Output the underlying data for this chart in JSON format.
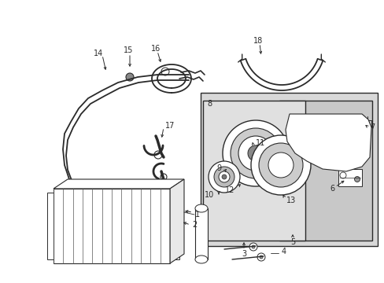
{
  "bg_color": "#ffffff",
  "line_color": "#2a2a2a",
  "shade_color": "#d8d8d8",
  "fig_width": 4.89,
  "fig_height": 3.6,
  "dpi": 100
}
